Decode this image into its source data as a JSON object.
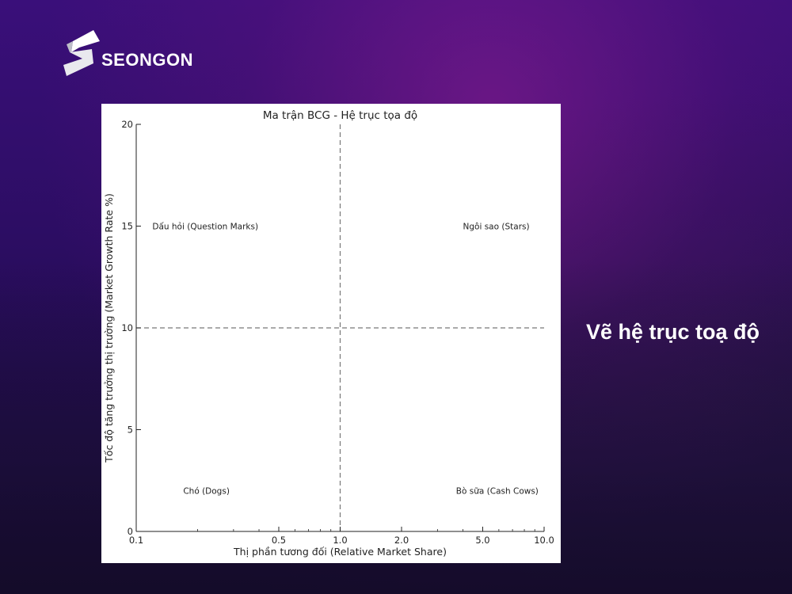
{
  "brand": {
    "name": "SEONGON",
    "logo_icon": "seongon-s-logo-icon"
  },
  "side_caption": "Vẽ hệ trục toạ độ",
  "colors": {
    "accent_purple": "#3a0f7a",
    "chart_bg": "#ffffff",
    "guide_line": "#777777"
  },
  "chart_data": {
    "type": "scatter",
    "title": "Ma trận BCG - Hệ trục tọa độ",
    "xlabel": "Thị phần tương đối (Relative Market Share)",
    "ylabel": "Tốc độ tăng trưởng thị trường (Market Growth Rate %)",
    "x_scale": "log",
    "xlim": [
      0.1,
      10.0
    ],
    "ylim": [
      0,
      20
    ],
    "x_ticks": [
      {
        "value": 0.1,
        "label": "0.1"
      },
      {
        "value": 0.5,
        "label": "0.5"
      },
      {
        "value": 1.0,
        "label": "1.0"
      },
      {
        "value": 2.0,
        "label": "2.0"
      },
      {
        "value": 5.0,
        "label": "5.0"
      },
      {
        "value": 10.0,
        "label": "10.0"
      }
    ],
    "y_ticks": [
      {
        "value": 0,
        "label": "0"
      },
      {
        "value": 5,
        "label": "5"
      },
      {
        "value": 10,
        "label": "10"
      },
      {
        "value": 15,
        "label": "15"
      },
      {
        "value": 20,
        "label": "20"
      }
    ],
    "reference_lines": [
      {
        "axis": "x",
        "value": 1.0,
        "style": "dashed"
      },
      {
        "axis": "y",
        "value": 10,
        "style": "dashed"
      }
    ],
    "annotations": [
      {
        "text": "Dấu hỏi (Question Marks)",
        "x": 0.12,
        "y": 15
      },
      {
        "text": "Ngôi sao (Stars)",
        "x": 4.0,
        "y": 15
      },
      {
        "text": "Chó (Dogs)",
        "x": 0.17,
        "y": 2
      },
      {
        "text": "Bò sữa (Cash Cows)",
        "x": 3.7,
        "y": 2
      }
    ],
    "grid": false
  }
}
